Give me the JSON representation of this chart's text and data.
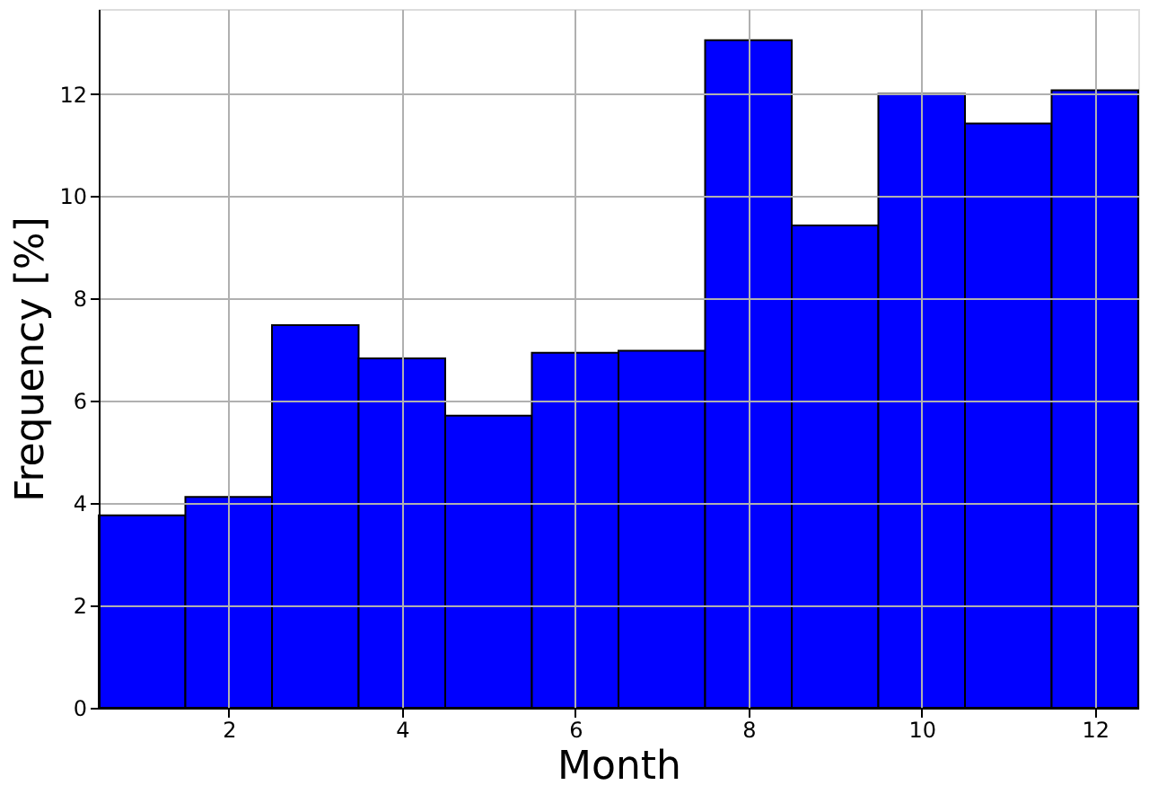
{
  "chart_data": {
    "type": "histogram",
    "xlabel": "Month",
    "ylabel": "Frequency [%]",
    "bins": [
      0.5,
      1.5,
      2.5,
      3.5,
      4.5,
      5.5,
      6.5,
      7.5,
      8.5,
      9.5,
      10.5,
      11.5,
      12.5
    ],
    "values": [
      3.76,
      4.12,
      7.48,
      6.83,
      5.71,
      6.94,
      6.98,
      13.05,
      9.43,
      12.0,
      11.42,
      12.07
    ],
    "color": "#0000ff",
    "xlim": [
      0.5,
      12.5
    ],
    "ylim": [
      0,
      13.66
    ],
    "xticks": [
      2,
      4,
      6,
      8,
      10,
      12
    ],
    "yticks": [
      0,
      2,
      4,
      6,
      8,
      10,
      12
    ],
    "grid": true
  }
}
